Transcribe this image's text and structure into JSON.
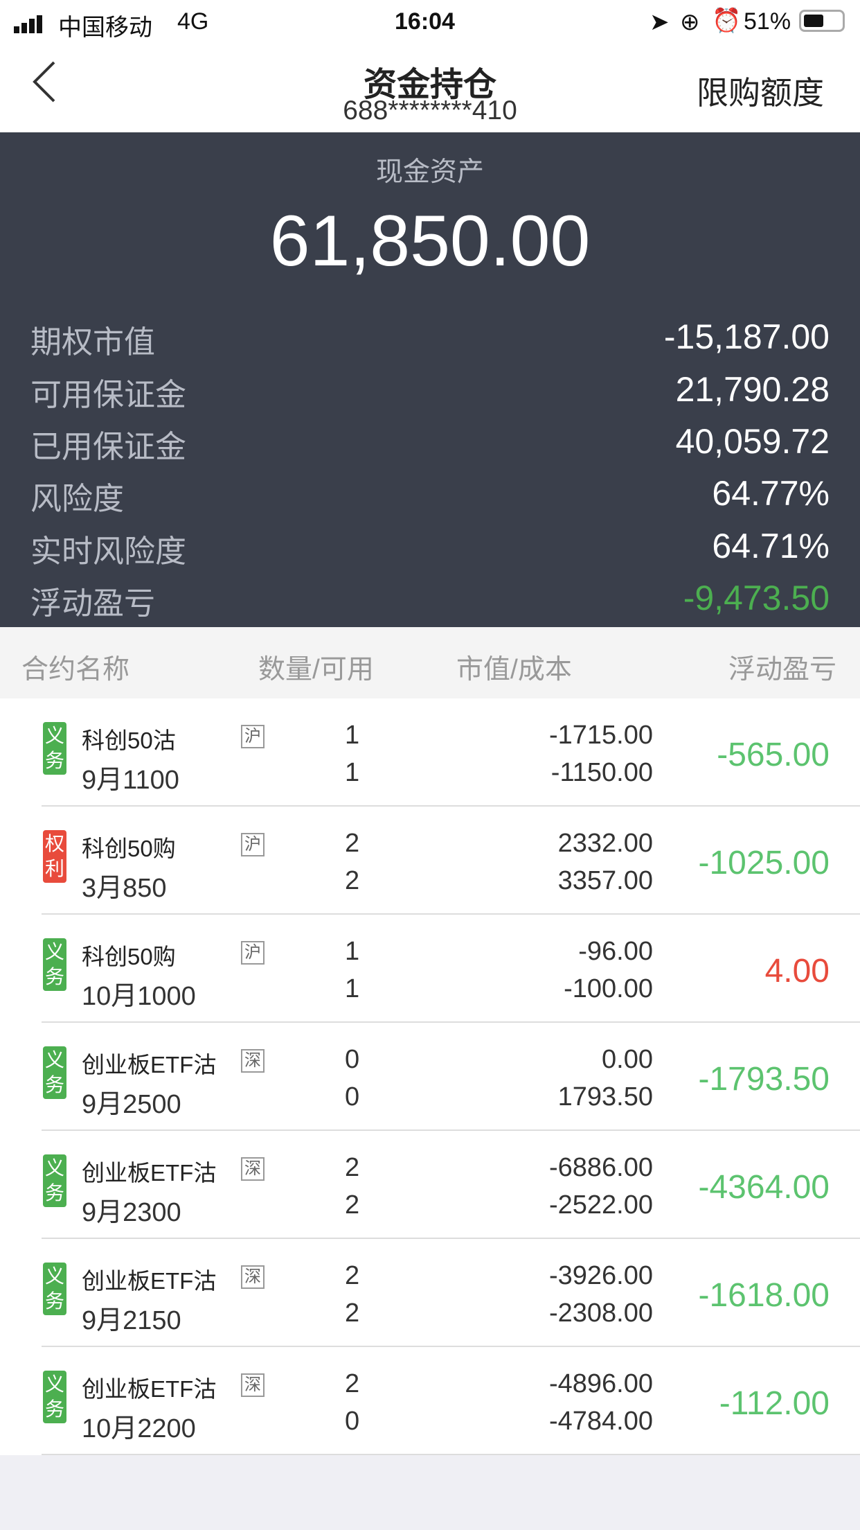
{
  "status": {
    "carrier": "中国移动",
    "network": "4G",
    "time": "16:04",
    "battery": "51%"
  },
  "nav": {
    "title": "资金持仓",
    "account": "688********410",
    "right_label": "限购额度",
    "back_icon": "chevron-left-icon"
  },
  "summary": {
    "cash_label": "现金资产",
    "cash_value": "61,850.00",
    "items": [
      {
        "label": "期权市值",
        "value": "-15,187.00"
      },
      {
        "label": "可用保证金",
        "value": "21,790.28"
      },
      {
        "label": "已用保证金",
        "value": "40,059.72"
      },
      {
        "label": "风险度",
        "value": "64.77%"
      },
      {
        "label": "实时风险度",
        "value": "64.71%"
      },
      {
        "label": "浮动盈亏",
        "value": "-9,473.50"
      }
    ]
  },
  "colors": {
    "green": "#4caf50",
    "red": "#e84b3c",
    "panel": "#3a3f4b",
    "profit_up": "#e84b3c",
    "profit_down": "#5cc36f"
  },
  "table": {
    "headers": [
      "合约名称",
      "数量/可用",
      "市值/成本",
      "浮动盈亏"
    ],
    "rows": [
      {
        "type": "义务",
        "name": "科创50沽",
        "exchange": "沪",
        "expiry": "9月1100",
        "qty": "1",
        "avail": "1",
        "mv": "-1715.00",
        "cost": "-1150.00",
        "pnl": "-565.00"
      },
      {
        "type": "权利",
        "name": "科创50购",
        "exchange": "沪",
        "expiry": "3月850",
        "qty": "2",
        "avail": "2",
        "mv": "2332.00",
        "cost": "3357.00",
        "pnl": "-1025.00"
      },
      {
        "type": "义务",
        "name": "科创50购",
        "exchange": "沪",
        "expiry": "10月1000",
        "qty": "1",
        "avail": "1",
        "mv": "-96.00",
        "cost": "-100.00",
        "pnl": "4.00"
      },
      {
        "type": "义务",
        "name": "创业板ETF沽",
        "exchange": "深",
        "expiry": "9月2500",
        "qty": "0",
        "avail": "0",
        "mv": "0.00",
        "cost": "1793.50",
        "pnl": "-1793.50"
      },
      {
        "type": "义务",
        "name": "创业板ETF沽",
        "exchange": "深",
        "expiry": "9月2300",
        "qty": "2",
        "avail": "2",
        "mv": "-6886.00",
        "cost": "-2522.00",
        "pnl": "-4364.00"
      },
      {
        "type": "义务",
        "name": "创业板ETF沽",
        "exchange": "深",
        "expiry": "9月2150",
        "qty": "2",
        "avail": "2",
        "mv": "-3926.00",
        "cost": "-2308.00",
        "pnl": "-1618.00"
      },
      {
        "type": "义务",
        "name": "创业板ETF沽",
        "exchange": "深",
        "expiry": "10月2200",
        "qty": "2",
        "avail": "0",
        "mv": "-4896.00",
        "cost": "-4784.00",
        "pnl": "-112.00"
      }
    ]
  }
}
